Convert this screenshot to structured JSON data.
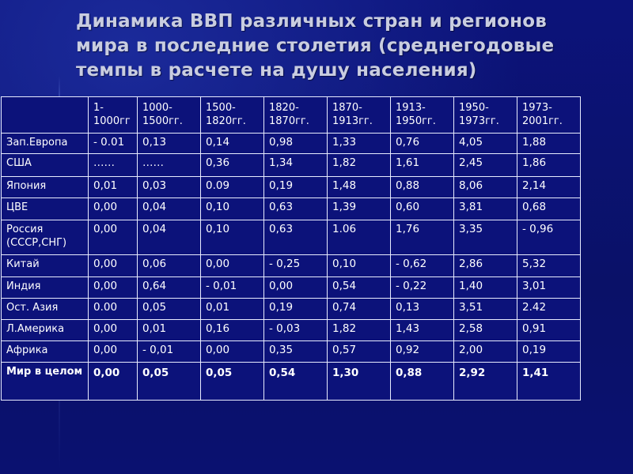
{
  "title_lines": [
    "Динамика ВВП различных стран и регионов",
    "мира в последние столетия (среднегодовые",
    "темпы в расчете на душу населения)"
  ],
  "table": {
    "periods": [
      [
        "1-",
        "1000гг"
      ],
      [
        "1000-",
        "1500гг."
      ],
      [
        "1500-",
        "1820гг."
      ],
      [
        "1820-",
        "1870гг."
      ],
      [
        "1870-",
        "1913гг."
      ],
      [
        "1913-",
        "1950гг."
      ],
      [
        "1950-",
        "1973гг."
      ],
      [
        "1973-",
        "2001гг."
      ]
    ],
    "rows": [
      {
        "region": "Зап.Европа",
        "values": [
          "- 0.01",
          "0,13",
          "0,14",
          "0,98",
          "1,33",
          "0,76",
          "4,05",
          "1,88"
        ]
      },
      {
        "region": "США",
        "values": [
          "……",
          "……",
          "0,36",
          "1,34",
          "1,82",
          "1,61",
          "2,45",
          "1,86"
        ]
      },
      {
        "region": "Япония",
        "values": [
          "0,01",
          "0,03",
          "0.09",
          "0,19",
          "1,48",
          "0,88",
          "8,06",
          "2,14"
        ]
      },
      {
        "region": "ЦВЕ",
        "values": [
          "0,00",
          "0,04",
          "0,10",
          "0,63",
          "1,39",
          "0,60",
          "3,81",
          "0,68"
        ]
      },
      {
        "region": "Россия (СССР,СНГ)",
        "values": [
          "0,00",
          "0,04",
          "0,10",
          "0,63",
          "1.06",
          "1,76",
          "3,35",
          "- 0,96"
        ]
      },
      {
        "region": "Китай",
        "values": [
          "0,00",
          "0,06",
          "0,00",
          "- 0,25",
          "0,10",
          "- 0,62",
          "2,86",
          "5,32"
        ]
      },
      {
        "region": "Индия",
        "values": [
          "0,00",
          "0,64",
          "- 0,01",
          "0,00",
          "0,54",
          "- 0,22",
          "1,40",
          "3,01"
        ]
      },
      {
        "region": "Ост. Азия",
        "values": [
          "0.00",
          "0,05",
          "0,01",
          "0,19",
          "0,74",
          "0,13",
          "3,51",
          "2.42"
        ]
      },
      {
        "region": "Л.Америка",
        "values": [
          "0,00",
          "0,01",
          "0,16",
          "- 0,03",
          "1,82",
          "1,43",
          "2,58",
          "0,91"
        ]
      },
      {
        "region": "Африка",
        "values": [
          "0,00",
          "- 0,01",
          "0,00",
          "0,35",
          "0,57",
          "0,92",
          "2,00",
          "0,19"
        ]
      }
    ],
    "total": {
      "region": "Мир в целом",
      "values": [
        "0,00",
        "0,05",
        "0,05",
        "0,54",
        "1,30",
        "0,88",
        "2,92",
        "1,41"
      ]
    }
  }
}
